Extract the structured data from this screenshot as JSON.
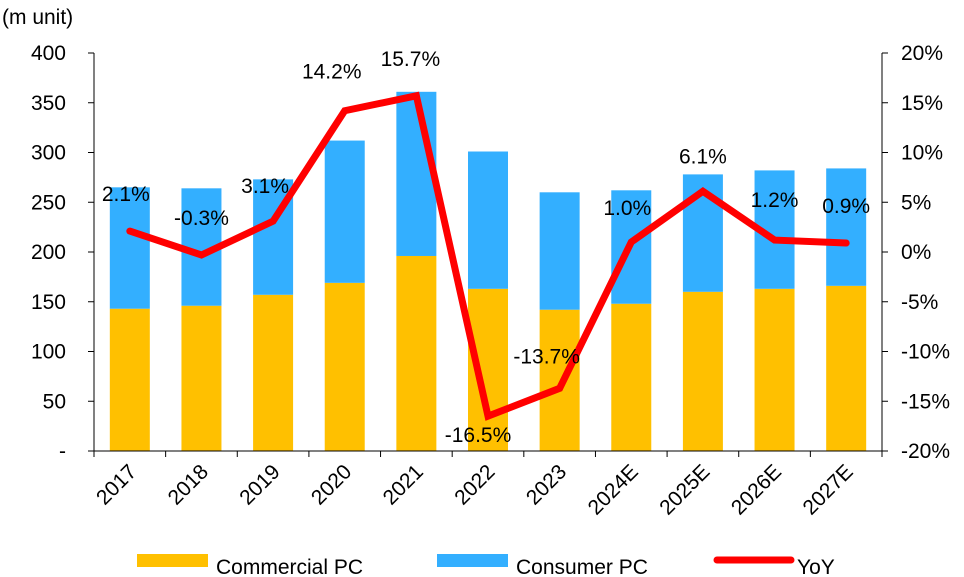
{
  "chart_data": {
    "type": "bar",
    "stacked": true,
    "title": "",
    "unit_label": "(m unit)",
    "xlabel": "",
    "ylabel": "(m unit)",
    "y2label": "",
    "categories": [
      "2017",
      "2018",
      "2019",
      "2020",
      "2021",
      "2022",
      "2023",
      "2024E",
      "2025E",
      "2026E",
      "2027E"
    ],
    "series": [
      {
        "name": "Commercial PC",
        "type": "bar",
        "axis": "left",
        "color": "#FFC000",
        "values": [
          143,
          146,
          157,
          169,
          196,
          163,
          142,
          148,
          160,
          163,
          166
        ]
      },
      {
        "name": "Consumer PC",
        "type": "bar",
        "axis": "left",
        "color": "#33AFFF",
        "values": [
          122,
          118,
          116,
          143,
          165,
          138,
          118,
          114,
          118,
          119,
          118
        ]
      },
      {
        "name": "YoY",
        "type": "line",
        "axis": "right",
        "color": "#FF0000",
        "values": [
          2.1,
          -0.3,
          3.1,
          14.2,
          15.7,
          -16.5,
          -13.7,
          1.0,
          6.1,
          1.2,
          0.9
        ],
        "labels": [
          "2.1%",
          "-0.3%",
          "3.1%",
          "14.2%",
          "15.7%",
          "-16.5%",
          "-13.7%",
          "1.0%",
          "6.1%",
          "1.2%",
          "0.9%"
        ]
      }
    ],
    "ylim": [
      0,
      400
    ],
    "y_ticks": [
      0,
      50,
      100,
      150,
      200,
      250,
      300,
      350,
      400
    ],
    "y_tick_labels": [
      "-",
      "50",
      "100",
      "150",
      "200",
      "250",
      "300",
      "350",
      "400"
    ],
    "y2lim": [
      -20,
      20
    ],
    "y2_ticks": [
      -20,
      -15,
      -10,
      -5,
      0,
      5,
      10,
      15,
      20
    ],
    "y2_tick_labels": [
      "-20%",
      "-15%",
      "-10%",
      "-5%",
      "0%",
      "5%",
      "10%",
      "15%",
      "20%"
    ],
    "grid": false,
    "legend": {
      "position": "bottom",
      "entries": [
        "Commercial PC",
        "Consumer PC",
        "YoY"
      ]
    }
  }
}
